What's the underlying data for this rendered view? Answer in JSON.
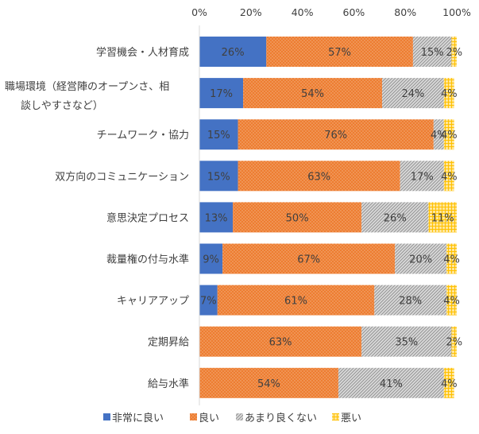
{
  "chart_data": {
    "type": "bar",
    "orientation": "horizontal",
    "stacked": true,
    "stacking": "percent",
    "categories": [
      "学習機会・人材育成",
      "職場環境（経営陣のオープンさ、相談しやすさなど）",
      "チームワーク・協力",
      "双方向のコミュニケーション",
      "意思決定プロセス",
      "裁量権の付与水準",
      "キャリアアップ",
      "定期昇給",
      "給与水準"
    ],
    "category_lines": [
      [
        "学習機会・人材育成"
      ],
      [
        "職場環境（経営陣のオープンさ、相",
        "談しやすさなど）"
      ],
      [
        "チームワーク・協力"
      ],
      [
        "双方向のコミュニケーション"
      ],
      [
        "意思決定プロセス"
      ],
      [
        "裁量権の付与水準"
      ],
      [
        "キャリアアップ"
      ],
      [
        "定期昇給"
      ],
      [
        "給与水準"
      ]
    ],
    "series": [
      {
        "name": "非常に良い",
        "color": "#4472C4",
        "pattern": "solid",
        "values": [
          26,
          17,
          15,
          15,
          13,
          9,
          7,
          0,
          0
        ]
      },
      {
        "name": "良い",
        "color": "#ED7D31",
        "pattern": "dots",
        "values": [
          57,
          54,
          76,
          63,
          50,
          67,
          61,
          63,
          54
        ]
      },
      {
        "name": "あまり良くない",
        "color": "#A5A5A5",
        "pattern": "diagonal",
        "values": [
          15,
          24,
          4,
          17,
          26,
          20,
          28,
          35,
          41
        ]
      },
      {
        "name": "悪い",
        "color": "#FFC000",
        "pattern": "grid",
        "values": [
          2,
          4,
          4,
          4,
          11,
          4,
          4,
          2,
          4
        ]
      }
    ],
    "xlim": [
      0,
      100
    ],
    "xticks": [
      "0%",
      "20%",
      "40%",
      "60%",
      "80%",
      "100%"
    ],
    "xaxis_position": "top",
    "legend_position": "bottom",
    "grid": false
  }
}
